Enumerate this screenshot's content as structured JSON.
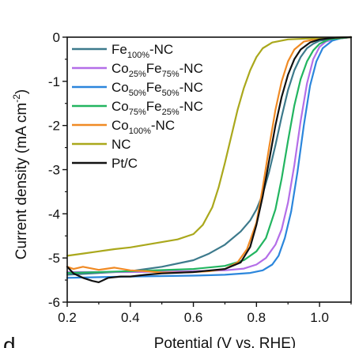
{
  "chart_data": {
    "type": "line",
    "panel_letter": "d",
    "xlabel": "Potential (V vs. RHE)",
    "ylabel_main": "Current density (mA cm",
    "ylabel_sup": "-2",
    "ylabel_end": ")",
    "xlim": [
      0.2,
      1.1
    ],
    "ylim": [
      -6,
      0
    ],
    "xticks": [
      0.2,
      0.4,
      0.6,
      0.8,
      1.0
    ],
    "xtick_labels": [
      "0.2",
      "0.4",
      "0.6",
      "0.8",
      "1.0"
    ],
    "yticks": [
      0,
      -1,
      -2,
      -3,
      -4,
      -5,
      -6
    ],
    "ytick_labels": [
      "0",
      "-1",
      "-2",
      "-3",
      "-4",
      "-5",
      "-6"
    ],
    "legend_position": "top-right",
    "series": [
      {
        "name": "Fe100%-NC",
        "legend_parts": [
          [
            "Fe",
            ""
          ],
          [
            "100%",
            "sub"
          ],
          [
            "-NC",
            ""
          ]
        ],
        "color": "#3d7a8c",
        "points": [
          [
            0.2,
            -5.38
          ],
          [
            0.3,
            -5.34
          ],
          [
            0.4,
            -5.3
          ],
          [
            0.5,
            -5.2
          ],
          [
            0.6,
            -5.05
          ],
          [
            0.65,
            -4.9
          ],
          [
            0.7,
            -4.7
          ],
          [
            0.75,
            -4.4
          ],
          [
            0.78,
            -4.15
          ],
          [
            0.8,
            -3.9
          ],
          [
            0.82,
            -3.55
          ],
          [
            0.84,
            -3.05
          ],
          [
            0.86,
            -2.45
          ],
          [
            0.88,
            -1.8
          ],
          [
            0.9,
            -1.2
          ],
          [
            0.92,
            -0.75
          ],
          [
            0.94,
            -0.45
          ],
          [
            0.96,
            -0.25
          ],
          [
            0.98,
            -0.15
          ],
          [
            1.0,
            -0.08
          ],
          [
            1.05,
            -0.03
          ],
          [
            1.1,
            0
          ]
        ]
      },
      {
        "name": "Co25%Fe75%-NC",
        "legend_parts": [
          [
            "Co",
            ""
          ],
          [
            "25%",
            "sub"
          ],
          [
            "Fe",
            ""
          ],
          [
            "75%",
            "sub"
          ],
          [
            "-NC",
            ""
          ]
        ],
        "color": "#b46ee8",
        "points": [
          [
            0.2,
            -5.32
          ],
          [
            0.4,
            -5.32
          ],
          [
            0.6,
            -5.3
          ],
          [
            0.7,
            -5.28
          ],
          [
            0.76,
            -5.24
          ],
          [
            0.8,
            -5.15
          ],
          [
            0.83,
            -5.0
          ],
          [
            0.86,
            -4.7
          ],
          [
            0.88,
            -4.35
          ],
          [
            0.9,
            -3.75
          ],
          [
            0.92,
            -2.9
          ],
          [
            0.94,
            -1.9
          ],
          [
            0.96,
            -1.05
          ],
          [
            0.98,
            -0.5
          ],
          [
            1.0,
            -0.22
          ],
          [
            1.02,
            -0.1
          ],
          [
            1.05,
            -0.04
          ],
          [
            1.1,
            0
          ]
        ]
      },
      {
        "name": "Co50%Fe50%-NC",
        "legend_parts": [
          [
            "Co",
            ""
          ],
          [
            "50%",
            "sub"
          ],
          [
            "Fe",
            ""
          ],
          [
            "50%",
            "sub"
          ],
          [
            "-NC",
            ""
          ]
        ],
        "color": "#2b86dc",
        "points": [
          [
            0.2,
            -5.45
          ],
          [
            0.4,
            -5.42
          ],
          [
            0.6,
            -5.4
          ],
          [
            0.7,
            -5.38
          ],
          [
            0.78,
            -5.34
          ],
          [
            0.82,
            -5.28
          ],
          [
            0.85,
            -5.15
          ],
          [
            0.87,
            -4.95
          ],
          [
            0.89,
            -4.55
          ],
          [
            0.91,
            -3.95
          ],
          [
            0.93,
            -3.05
          ],
          [
            0.95,
            -2.0
          ],
          [
            0.97,
            -1.1
          ],
          [
            0.99,
            -0.55
          ],
          [
            1.01,
            -0.25
          ],
          [
            1.04,
            -0.08
          ],
          [
            1.07,
            -0.02
          ],
          [
            1.1,
            0
          ]
        ]
      },
      {
        "name": "Co75%Fe25%-NC",
        "legend_parts": [
          [
            "Co",
            ""
          ],
          [
            "75%",
            "sub"
          ],
          [
            "Fe",
            ""
          ],
          [
            "25%",
            "sub"
          ],
          [
            "-NC",
            ""
          ]
        ],
        "color": "#22b560",
        "points": [
          [
            0.2,
            -5.34
          ],
          [
            0.4,
            -5.3
          ],
          [
            0.6,
            -5.25
          ],
          [
            0.7,
            -5.18
          ],
          [
            0.76,
            -5.05
          ],
          [
            0.8,
            -4.85
          ],
          [
            0.83,
            -4.55
          ],
          [
            0.86,
            -3.9
          ],
          [
            0.88,
            -3.2
          ],
          [
            0.9,
            -2.35
          ],
          [
            0.92,
            -1.55
          ],
          [
            0.94,
            -0.95
          ],
          [
            0.96,
            -0.55
          ],
          [
            0.98,
            -0.3
          ],
          [
            1.0,
            -0.15
          ],
          [
            1.03,
            -0.05
          ],
          [
            1.1,
            0
          ]
        ]
      },
      {
        "name": "Co100%-NC",
        "legend_parts": [
          [
            "Co",
            ""
          ],
          [
            "100%",
            "sub"
          ],
          [
            "-NC",
            ""
          ]
        ],
        "color": "#f08a24",
        "points": [
          [
            0.2,
            -5.2
          ],
          [
            0.22,
            -5.25
          ],
          [
            0.25,
            -5.2
          ],
          [
            0.3,
            -5.27
          ],
          [
            0.35,
            -5.22
          ],
          [
            0.4,
            -5.28
          ],
          [
            0.45,
            -5.3
          ],
          [
            0.5,
            -5.33
          ],
          [
            0.55,
            -5.33
          ],
          [
            0.6,
            -5.32
          ],
          [
            0.65,
            -5.3
          ],
          [
            0.7,
            -5.25
          ],
          [
            0.74,
            -5.1
          ],
          [
            0.77,
            -4.8
          ],
          [
            0.8,
            -4.2
          ],
          [
            0.82,
            -3.4
          ],
          [
            0.84,
            -2.5
          ],
          [
            0.86,
            -1.65
          ],
          [
            0.88,
            -1.0
          ],
          [
            0.9,
            -0.55
          ],
          [
            0.92,
            -0.28
          ],
          [
            0.95,
            -0.1
          ],
          [
            1.0,
            -0.03
          ],
          [
            1.1,
            0
          ]
        ]
      },
      {
        "name": "NC",
        "legend_parts": [
          [
            "NC",
            ""
          ]
        ],
        "color": "#aaa81c",
        "points": [
          [
            0.2,
            -4.95
          ],
          [
            0.25,
            -4.9
          ],
          [
            0.3,
            -4.85
          ],
          [
            0.35,
            -4.8
          ],
          [
            0.4,
            -4.76
          ],
          [
            0.45,
            -4.7
          ],
          [
            0.5,
            -4.64
          ],
          [
            0.55,
            -4.58
          ],
          [
            0.6,
            -4.46
          ],
          [
            0.63,
            -4.25
          ],
          [
            0.66,
            -3.85
          ],
          [
            0.68,
            -3.4
          ],
          [
            0.7,
            -2.85
          ],
          [
            0.72,
            -2.25
          ],
          [
            0.74,
            -1.65
          ],
          [
            0.76,
            -1.15
          ],
          [
            0.78,
            -0.75
          ],
          [
            0.8,
            -0.45
          ],
          [
            0.82,
            -0.25
          ],
          [
            0.85,
            -0.12
          ],
          [
            0.9,
            -0.05
          ],
          [
            1.0,
            -0.02
          ],
          [
            1.1,
            0
          ]
        ]
      },
      {
        "name": "Pt/C",
        "legend_parts": [
          [
            "Pt/C",
            ""
          ]
        ],
        "color": "#111111",
        "points": [
          [
            0.2,
            -5.2
          ],
          [
            0.22,
            -5.35
          ],
          [
            0.25,
            -5.45
          ],
          [
            0.28,
            -5.52
          ],
          [
            0.3,
            -5.55
          ],
          [
            0.33,
            -5.45
          ],
          [
            0.37,
            -5.42
          ],
          [
            0.4,
            -5.42
          ],
          [
            0.45,
            -5.38
          ],
          [
            0.5,
            -5.35
          ],
          [
            0.6,
            -5.32
          ],
          [
            0.7,
            -5.25
          ],
          [
            0.75,
            -5.1
          ],
          [
            0.78,
            -4.75
          ],
          [
            0.8,
            -4.25
          ],
          [
            0.82,
            -3.6
          ],
          [
            0.84,
            -2.8
          ],
          [
            0.86,
            -2.0
          ],
          [
            0.88,
            -1.35
          ],
          [
            0.9,
            -0.85
          ],
          [
            0.92,
            -0.5
          ],
          [
            0.94,
            -0.28
          ],
          [
            0.97,
            -0.12
          ],
          [
            1.0,
            -0.05
          ],
          [
            1.05,
            -0.01
          ],
          [
            1.1,
            0
          ]
        ]
      }
    ]
  }
}
